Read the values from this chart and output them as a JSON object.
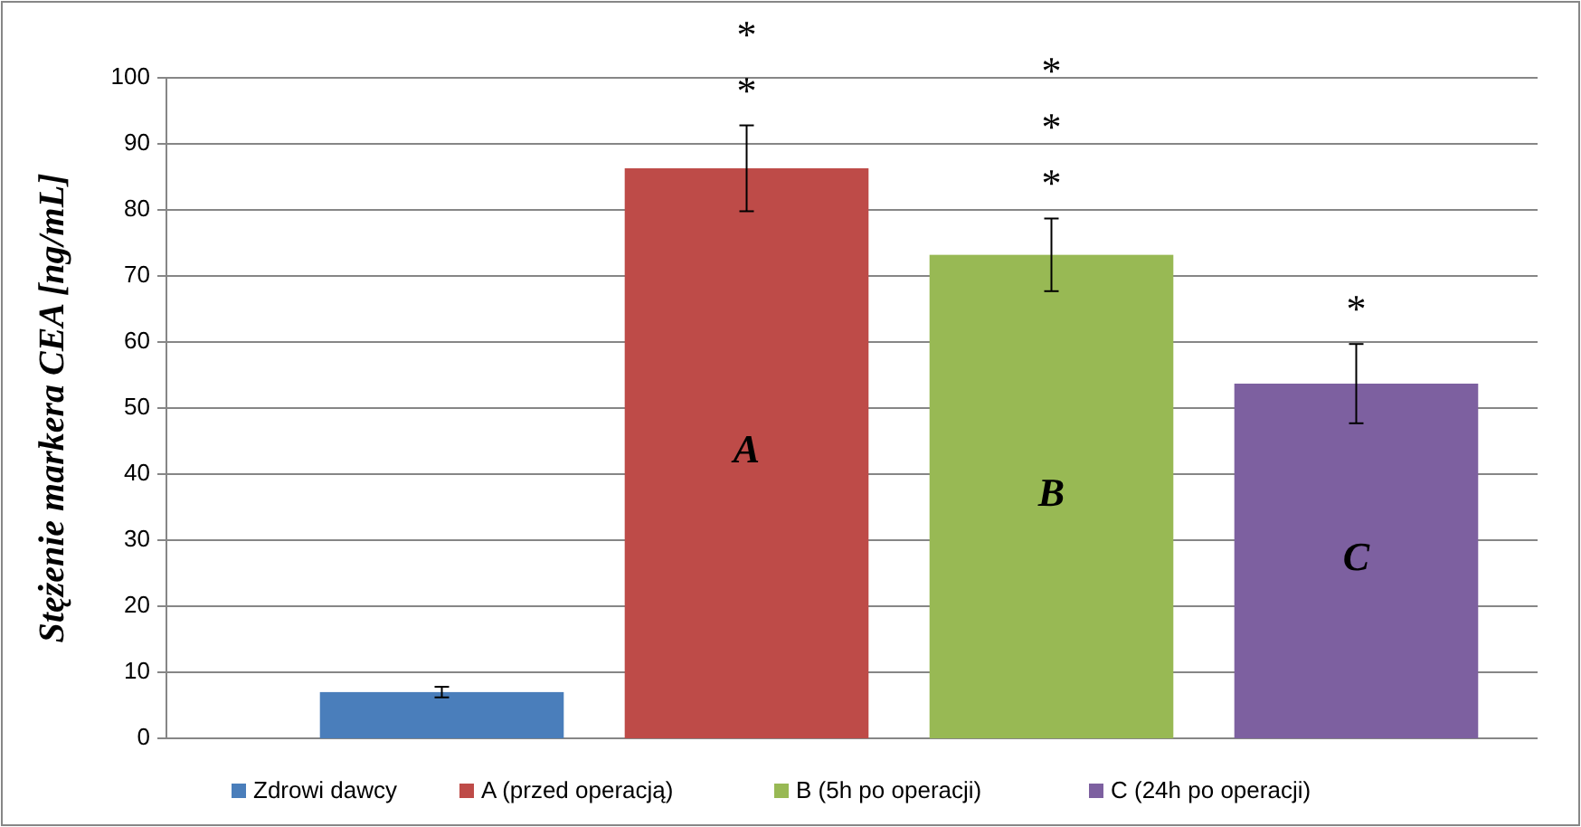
{
  "chart_data": {
    "type": "bar",
    "ylabel": "Stężenie markera CEA [ng/mL]",
    "categories": [
      null,
      null,
      null,
      null
    ],
    "series": [
      {
        "name": "Zdrowi dawcy",
        "color": "#4a7ebb",
        "values": [
          7,
          null,
          null,
          null
        ],
        "errors": [
          0.8,
          null,
          null,
          null
        ]
      },
      {
        "name": "A (przed operacją)",
        "color": "#be4b48",
        "values": [
          null,
          86.3,
          null,
          null
        ],
        "errors": [
          null,
          6.5,
          null,
          null
        ],
        "value_labels": [
          null,
          "A",
          null,
          null
        ]
      },
      {
        "name": "B (5h po operacji)",
        "color": "#98b954",
        "values": [
          null,
          null,
          73.2,
          null
        ],
        "errors": [
          null,
          null,
          5.5,
          null
        ],
        "value_labels": [
          null,
          null,
          "B",
          null
        ]
      },
      {
        "name": "C (24h po operacji)",
        "color": "#7d60a0",
        "values": [
          null,
          null,
          null,
          53.7
        ],
        "errors": [
          null,
          null,
          null,
          6
        ],
        "value_labels": [
          null,
          null,
          null,
          "C"
        ]
      }
    ],
    "annotations": [
      "**",
      "***",
      "*"
    ],
    "ylim": [
      0,
      100
    ],
    "yticks": [
      0,
      10,
      20,
      30,
      40,
      50,
      60,
      70,
      80,
      90,
      100
    ],
    "grid": "y",
    "legend": "bottom"
  }
}
